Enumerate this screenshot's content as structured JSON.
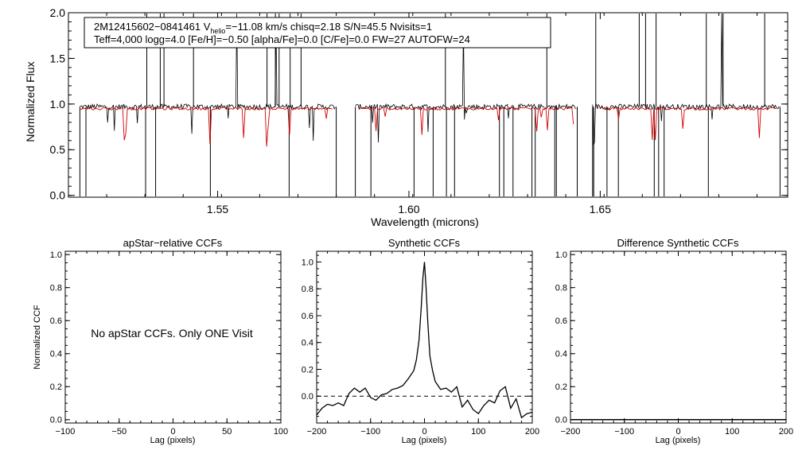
{
  "chart_data": [
    {
      "type": "line",
      "id": "spectrum",
      "title": "",
      "xlabel": "Wavelength (microns)",
      "ylabel": "Normalized Flux",
      "xlim": [
        1.511,
        1.699
      ],
      "ylim": [
        -0.02,
        2.0
      ],
      "x_ticks": [
        1.55,
        1.6,
        1.65
      ],
      "x_tick_labels": [
        "1.55",
        "1.60",
        "1.65"
      ],
      "y_ticks": [
        0.0,
        0.5,
        1.0,
        1.5,
        2.0
      ],
      "y_tick_labels": [
        "0.0",
        "0.5",
        "1.0",
        "1.5",
        "2.0"
      ],
      "info_box": {
        "line1_prefix": "2M12415602−0841461   V",
        "line1_sub": "helio",
        "line1_suffix": "=−11.08 km/s  chisq=2.18  S/N=45.5  Nvisits=1",
        "line2": "Teff=4,000 logg=4.0 [Fe/H]=−0.50 [alpha/Fe]=0.0 [C/Fe]=0.0 FW=27 AUTOFW=24"
      },
      "chip_ranges": [
        [
          1.514,
          1.581
        ],
        [
          1.586,
          1.644
        ],
        [
          1.648,
          1.697
        ]
      ],
      "model_ranges": [
        [
          1.514,
          1.58
        ],
        [
          1.587,
          1.643
        ],
        [
          1.65,
          1.696
        ]
      ],
      "series": [
        {
          "name": "observed",
          "color": "#000000",
          "continuum": 0.97
        },
        {
          "name": "model",
          "color": "#d40000",
          "continuum": 0.95
        }
      ]
    },
    {
      "type": "line",
      "id": "apstar_ccf",
      "title": "apStar−relative CCFs",
      "xlabel": "Lag (pixels)",
      "ylabel": "Normalized CCF",
      "xlim": [
        -100,
        100
      ],
      "ylim": [
        -0.02,
        1.02
      ],
      "x_ticks": [
        -100,
        -50,
        0,
        50,
        100
      ],
      "x_tick_labels": [
        "−100",
        "−50",
        "0",
        "50",
        "100"
      ],
      "y_ticks": [
        0.0,
        0.2,
        0.4,
        0.6,
        0.8,
        1.0
      ],
      "y_tick_labels": [
        "0.0",
        "0.2",
        "0.4",
        "0.6",
        "0.8",
        "1.0"
      ],
      "annotation": "No apStar CCFs.  Only ONE Visit",
      "series": []
    },
    {
      "type": "line",
      "id": "synthetic_ccf",
      "title": "Synthetic CCFs",
      "xlabel": "Lag (pixels)",
      "ylabel": "",
      "xlim": [
        -200,
        200
      ],
      "ylim": [
        -0.2,
        1.08
      ],
      "x_ticks": [
        -200,
        -100,
        0,
        100,
        200
      ],
      "x_tick_labels": [
        "−200",
        "−100",
        "0",
        "100",
        "200"
      ],
      "y_ticks": [
        0.0,
        0.2,
        0.4,
        0.6,
        0.8,
        1.0
      ],
      "y_tick_labels": [
        "0.0",
        "0.2",
        "0.4",
        "0.6",
        "0.8",
        "1.0"
      ],
      "zero_line": 0.0,
      "series": [
        {
          "name": "synthetic ccf",
          "x": [
            -200,
            -190,
            -180,
            -170,
            -160,
            -150,
            -140,
            -130,
            -120,
            -110,
            -100,
            -90,
            -80,
            -70,
            -60,
            -50,
            -40,
            -30,
            -20,
            -15,
            -10,
            -6,
            -3,
            0,
            3,
            6,
            10,
            15,
            20,
            30,
            40,
            50,
            60,
            70,
            80,
            90,
            100,
            110,
            120,
            130,
            140,
            150,
            160,
            170,
            180,
            190,
            200
          ],
          "y": [
            -0.14,
            -0.09,
            -0.06,
            -0.07,
            -0.05,
            -0.07,
            0.02,
            0.06,
            0.03,
            0.06,
            -0.01,
            -0.03,
            0.01,
            0.02,
            0.05,
            0.06,
            0.08,
            0.13,
            0.19,
            0.27,
            0.42,
            0.66,
            0.88,
            1.0,
            0.81,
            0.56,
            0.3,
            0.19,
            0.11,
            0.05,
            0.06,
            0.03,
            0.07,
            -0.08,
            -0.03,
            -0.1,
            -0.13,
            -0.07,
            -0.03,
            -0.05,
            0.04,
            0.07,
            -0.09,
            -0.02,
            -0.16,
            -0.13,
            -0.12
          ]
        }
      ]
    },
    {
      "type": "line",
      "id": "difference_ccf",
      "title": "Difference Synthetic CCFs",
      "xlabel": "Lag (pixels)",
      "ylabel": "",
      "xlim": [
        -200,
        200
      ],
      "ylim": [
        -0.02,
        1.02
      ],
      "x_ticks": [
        -200,
        -100,
        0,
        100,
        200
      ],
      "x_tick_labels": [
        "−200",
        "−100",
        "0",
        "100",
        "200"
      ],
      "y_ticks": [
        0.0,
        0.2,
        0.4,
        0.6,
        0.8,
        1.0
      ],
      "y_tick_labels": [
        "0.0",
        "0.2",
        "0.4",
        "0.6",
        "0.8",
        "1.0"
      ],
      "series": [
        {
          "name": "difference",
          "x": [
            -200,
            200
          ],
          "y": [
            0.0,
            0.0
          ]
        }
      ]
    }
  ]
}
